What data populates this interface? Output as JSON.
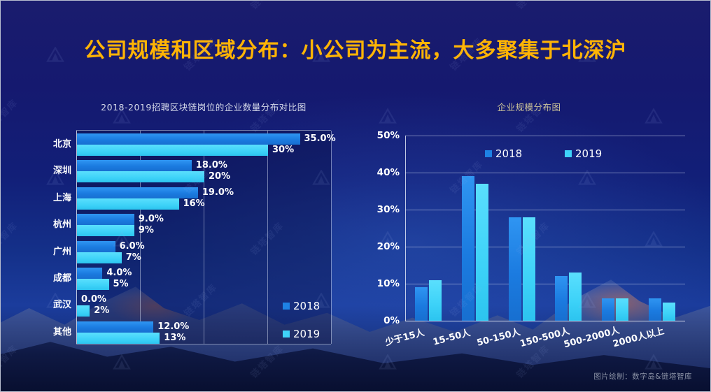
{
  "slide_title": "公司规模和区域分布：小公司为主流，大多聚集于北深沪",
  "credit": "图片绘制：数字岛&链塔智库",
  "watermark_text": "链塔智库",
  "colors": {
    "title_gold": "#FFB405",
    "series_2018": "#1E82E4",
    "series_2019": "#3FD3F9",
    "background_navy": "#151A6E",
    "right_title_tan": "#CBC298"
  },
  "chart_data": [
    {
      "type": "bar",
      "orientation": "horizontal",
      "title": "2018-2019招聘区块链岗位的企业数量分布对比图",
      "categories": [
        "北京",
        "深圳",
        "上海",
        "杭州",
        "广州",
        "成都",
        "武汉",
        "其他"
      ],
      "series": [
        {
          "name": "2018",
          "values": [
            35,
            18,
            19,
            9,
            6,
            4,
            0,
            12
          ],
          "labels": [
            "35.0%",
            "18.0%",
            "19.0%",
            "9.0%",
            "6.0%",
            "4.0%",
            "0.0%",
            "12.0%"
          ]
        },
        {
          "name": "2019",
          "values": [
            30,
            20,
            16,
            9,
            7,
            5,
            2,
            13
          ],
          "labels": [
            "30%",
            "20%",
            "16%",
            "9%",
            "7%",
            "5%",
            "2%",
            "13%"
          ]
        }
      ],
      "xlim": [
        0,
        40
      ],
      "gridlines": [
        10,
        20,
        30,
        40
      ],
      "grid": true,
      "legend": [
        "2018",
        "2019"
      ],
      "legend_position": "inside-bottom-right"
    },
    {
      "type": "bar",
      "orientation": "vertical",
      "title": "企业规模分布图",
      "categories": [
        "少于15人",
        "15-50人",
        "50-150人",
        "150-500人",
        "500-2000人",
        "2000人以上"
      ],
      "series": [
        {
          "name": "2018",
          "values": [
            9,
            39,
            28,
            12,
            6,
            6
          ]
        },
        {
          "name": "2019",
          "values": [
            11,
            37,
            28,
            13,
            6,
            5
          ]
        }
      ],
      "ylim": [
        0,
        50
      ],
      "yticks": [
        "50%",
        "40%",
        "30%",
        "20%",
        "10%",
        "0%"
      ],
      "grid": true,
      "legend": [
        "2018",
        "2019"
      ],
      "legend_position": "inside-top"
    }
  ]
}
